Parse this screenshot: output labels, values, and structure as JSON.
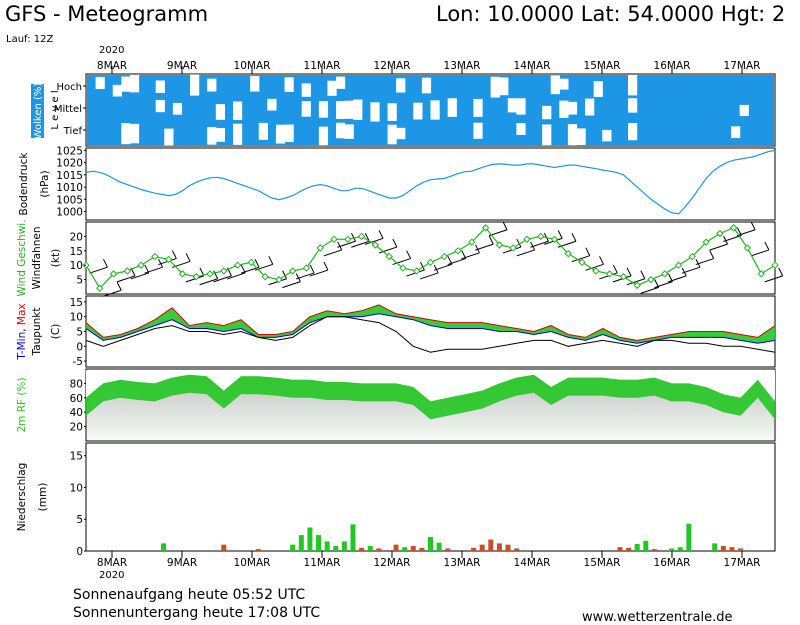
{
  "header": {
    "title": "GFS - Meteogramm",
    "location": "Lon: 10.0000 Lat: 54.0000 Hgt: 2",
    "run": "Lauf: 12Z",
    "year_top": "2020",
    "year_bottom": "2020"
  },
  "footer": {
    "sunrise": "Sonnenaufgang heute 05:52 UTC",
    "sunset": "Sonnenuntergang heute 17:08 UTC",
    "site": "www.wetterzentrale.de"
  },
  "colors": {
    "cloud": "#1e96e6",
    "pressure": "#1e96e6",
    "wind_speed": "#22b422",
    "tmin": "#0000dc",
    "tmax": "#dc0000",
    "dewpoint": "#000000",
    "rh_fill": "#22c822",
    "precip_rain": "#22c822",
    "precip_snow": "#c85028",
    "temp_fill_warm": "#d8d820",
    "temp_fill_green": "#22c822"
  },
  "chart_data": [
    {
      "type": "heatmap",
      "panel": "clouds",
      "ylabel_colored": "Wolken (%)",
      "ylabel": "L e v e l",
      "levels": [
        "Hoch",
        "Mittel",
        "Tief"
      ],
      "categories": [
        "8MAR",
        "9MAR",
        "10MAR",
        "11MAR",
        "12MAR",
        "13MAR",
        "14MAR",
        "15MAR",
        "16MAR",
        "17MAR"
      ],
      "hoch": [
        0.5,
        0.6,
        0.7,
        0.5,
        0.8,
        0.9,
        0.6,
        0.6,
        1.0,
        0.9
      ],
      "mittel": [
        0.6,
        0.5,
        0.4,
        0.6,
        0.7,
        0.7,
        0.5,
        0.5,
        1.0,
        0.8
      ],
      "tief": [
        0.8,
        0.5,
        0.4,
        0.5,
        0.5,
        0.6,
        0.5,
        0.6,
        1.0,
        0.8
      ]
    },
    {
      "type": "line",
      "panel": "pressure",
      "ylabel": "Bodendruck",
      "unit": "(hPa)",
      "yticks": [
        1000,
        1005,
        1010,
        1015,
        1020,
        1025
      ],
      "ylim": [
        996.5,
        1026
      ],
      "x": [
        0,
        0.2,
        0.4,
        0.6,
        0.8,
        1.0,
        1.2,
        1.4,
        1.6,
        1.8,
        2.0,
        2.2,
        2.4,
        2.6,
        2.8,
        3.0,
        3.2,
        3.4,
        3.6,
        3.8,
        4.0,
        4.2,
        4.4,
        4.6,
        4.8,
        5.0,
        5.2,
        5.4,
        5.6,
        5.8,
        6.0,
        6.2,
        6.4,
        6.6,
        6.8,
        7.0,
        7.2,
        7.4,
        7.6,
        7.8,
        8.0,
        8.2,
        8.4,
        8.6,
        8.8,
        9.0,
        9.2,
        9.4,
        9.6,
        9.8,
        10.0,
        10.2,
        10.4,
        10.6,
        10.8,
        11.0,
        11.2,
        11.4,
        11.6,
        11.8,
        12.0,
        12.2,
        12.4,
        12.6,
        12.8,
        13.0,
        13.2,
        13.4,
        13.6,
        13.8,
        14.0,
        14.2,
        14.4,
        14.6,
        14.8,
        15.0,
        15.2,
        15.4,
        15.6,
        15.8,
        16.0,
        16.2,
        16.4,
        16.6,
        16.8,
        17.0,
        17.2,
        17.4,
        17.6,
        17.8,
        18.0,
        18.2,
        18.4,
        18.6,
        18.8,
        19.0,
        19.2,
        19.4,
        19.6,
        19.8,
        20.0
      ],
      "values": [
        1016,
        1016.5,
        1016,
        1015,
        1013.5,
        1012,
        1011,
        1010,
        1009,
        1008.2,
        1007.5,
        1007,
        1006.5,
        1007,
        1008.5,
        1010.5,
        1012,
        1013,
        1013.8,
        1014,
        1013.5,
        1012.5,
        1011.5,
        1010.5,
        1009.5,
        1008.5,
        1007,
        1005.5,
        1004.8,
        1005.5,
        1006.5,
        1008,
        1009.5,
        1010.5,
        1011,
        1010.5,
        1009.5,
        1008.5,
        1008.5,
        1009.5,
        1009.5,
        1008.5,
        1007.5,
        1006.5,
        1005.5,
        1005.5,
        1006.5,
        1008.5,
        1010.5,
        1012,
        1013,
        1013.3,
        1013.5,
        1014.5,
        1015.5,
        1016.3,
        1016.5,
        1017.5,
        1018.5,
        1019.3,
        1019.5,
        1019.3,
        1019,
        1019,
        1019.5,
        1019.5,
        1019,
        1018.5,
        1018,
        1018.5,
        1019,
        1019,
        1018.5,
        1018,
        1017.5,
        1017,
        1016.5,
        1016,
        1015,
        1012.5,
        1010,
        1007.5,
        1005,
        1003,
        1001,
        999.5,
        999,
        1002,
        1005.5,
        1009.5,
        1013.5,
        1016.5,
        1018.5,
        1020,
        1021,
        1021.5,
        1022,
        1022.5,
        1023.5,
        1024.5,
        1025
      ]
    },
    {
      "type": "line",
      "panel": "wind",
      "ylabel_colored": "Wind Geschwi.",
      "ylabel": "Windfahnen",
      "unit": "(kt)",
      "yticks": [
        5,
        10,
        15,
        20
      ],
      "ylim": [
        0,
        25
      ],
      "x": [
        0,
        0.4,
        0.8,
        1.2,
        1.6,
        2.0,
        2.4,
        2.8,
        3.2,
        3.6,
        4.0,
        4.4,
        4.8,
        5.2,
        5.6,
        6.0,
        6.4,
        6.8,
        7.2,
        7.6,
        8.0,
        8.4,
        8.8,
        9.2,
        9.6,
        10.0,
        10.4,
        10.8,
        11.2,
        11.6,
        12.0,
        12.4,
        12.8,
        13.2,
        13.6,
        14.0,
        14.4,
        14.8,
        15.2,
        15.6,
        16.0,
        16.4,
        16.8,
        17.2,
        17.6,
        18.0,
        18.4,
        18.8,
        19.2,
        19.6,
        20.0
      ],
      "values": [
        10,
        2,
        7,
        8,
        10,
        13,
        12,
        7,
        6,
        7,
        8,
        10,
        11,
        6,
        5,
        8,
        9,
        16,
        19,
        19,
        20,
        17,
        13,
        9,
        8,
        11,
        13,
        15,
        18,
        23,
        17,
        16,
        19,
        20,
        19,
        14,
        11,
        8,
        7,
        6,
        3,
        5,
        7,
        10,
        13,
        18,
        21,
        23,
        16,
        7,
        10
      ]
    },
    {
      "type": "line",
      "panel": "temperature",
      "ylabel_parts": [
        "T-Min",
        ", ",
        "Max"
      ],
      "ylabel": "Taupunkt",
      "unit": "(C)",
      "yticks": [
        -5,
        0,
        5,
        10,
        15
      ],
      "ylim": [
        -7,
        17
      ],
      "x": [
        0,
        0.5,
        1.0,
        1.5,
        2.0,
        2.5,
        3.0,
        3.5,
        4.0,
        4.5,
        5.0,
        5.5,
        6.0,
        6.5,
        7.0,
        7.5,
        8.0,
        8.5,
        9.0,
        9.5,
        10.0,
        10.5,
        11.0,
        11.5,
        12.0,
        12.5,
        13.0,
        13.5,
        14.0,
        14.5,
        15.0,
        15.5,
        16.0,
        16.5,
        17.0,
        17.5,
        18.0,
        18.5,
        19.0,
        19.5,
        20.0
      ],
      "series": [
        {
          "name": "T-Max",
          "values": [
            8,
            3,
            4,
            6,
            9,
            13,
            7,
            8,
            7,
            9,
            4,
            4,
            5,
            10,
            12,
            11,
            12,
            14,
            11,
            10,
            9,
            8,
            8,
            8,
            7,
            6,
            5,
            7,
            4,
            3,
            6,
            3,
            2,
            3,
            4,
            5,
            5,
            5,
            4,
            3,
            7
          ]
        },
        {
          "name": "T-Min",
          "values": [
            6,
            2,
            3,
            5,
            7,
            9,
            6,
            6,
            5,
            6,
            3,
            3,
            4,
            8,
            10,
            10,
            10,
            11,
            10,
            9,
            7,
            6,
            6,
            6,
            5,
            5,
            4,
            5,
            3,
            2,
            4,
            2,
            1,
            2,
            3,
            3,
            3,
            3,
            2,
            1,
            2
          ]
        },
        {
          "name": "Taupunkt",
          "values": [
            2,
            0,
            2,
            4,
            6,
            7,
            5,
            5,
            4,
            5,
            3,
            2,
            3,
            7,
            10,
            10,
            9,
            8,
            5,
            0,
            -2,
            -1,
            -1,
            -1,
            0,
            1,
            2,
            2,
            0,
            1,
            2,
            1,
            0,
            2,
            2,
            1,
            1,
            0,
            0,
            -1,
            -2
          ]
        }
      ]
    },
    {
      "type": "area",
      "panel": "humidity",
      "ylabel": "2m RF (%)",
      "yticks": [
        20,
        40,
        60,
        80
      ],
      "ylim": [
        0,
        100
      ],
      "x": [
        0,
        0.5,
        1.0,
        1.5,
        2.0,
        2.5,
        3.0,
        3.5,
        4.0,
        4.5,
        5.0,
        5.5,
        6.0,
        6.5,
        7.0,
        7.5,
        8.0,
        8.5,
        9.0,
        9.5,
        10.0,
        10.5,
        11.0,
        11.5,
        12.0,
        12.5,
        13.0,
        13.5,
        14.0,
        14.5,
        15.0,
        15.5,
        16.0,
        16.5,
        17.0,
        17.5,
        18.0,
        18.5,
        19.0,
        19.5,
        20.0
      ],
      "values": [
        60,
        80,
        85,
        82,
        80,
        88,
        92,
        90,
        70,
        90,
        90,
        88,
        85,
        85,
        82,
        82,
        80,
        80,
        80,
        75,
        55,
        60,
        65,
        70,
        80,
        88,
        92,
        75,
        88,
        88,
        88,
        85,
        85,
        88,
        80,
        80,
        75,
        65,
        60,
        85,
        55
      ]
    },
    {
      "type": "bar",
      "panel": "precipitation",
      "ylabel": "Niederschlag",
      "unit": "(mm)",
      "yticks": [
        0,
        5,
        10,
        15
      ],
      "ylim": [
        0,
        17
      ],
      "categories": [
        "8MAR",
        "9MAR",
        "10MAR",
        "11MAR",
        "12MAR",
        "13MAR",
        "14MAR",
        "15MAR",
        "16MAR",
        "17MAR"
      ],
      "x": [
        2.25,
        4.0,
        5.0,
        6.0,
        6.25,
        6.5,
        6.75,
        7.0,
        7.25,
        7.5,
        7.75,
        8.0,
        8.25,
        8.5,
        9.0,
        9.25,
        9.5,
        9.75,
        10.0,
        10.25,
        10.5,
        11.25,
        11.5,
        11.75,
        12.0,
        12.25,
        12.5,
        15.5,
        15.75,
        16.0,
        16.25,
        16.5,
        17.0,
        17.25,
        17.5,
        18.25,
        18.5,
        18.75,
        19.0
      ],
      "values": [
        1.2,
        1.0,
        0.3,
        1.0,
        2.5,
        3.7,
        2.5,
        1.5,
        0.8,
        1.5,
        4.2,
        0.5,
        0.8,
        0.4,
        1.0,
        0.6,
        0.8,
        0.5,
        2.2,
        1.3,
        0.4,
        0.5,
        1.0,
        1.8,
        1.2,
        1.0,
        0.4,
        0.6,
        0.5,
        1.1,
        1.6,
        0.3,
        0.4,
        0.6,
        4.3,
        1.2,
        0.8,
        0.6,
        0.4
      ],
      "kinds": [
        "r",
        "s",
        "s",
        "r",
        "r",
        "r",
        "r",
        "r",
        "r",
        "r",
        "r",
        "s",
        "r",
        "s",
        "s",
        "r",
        "s",
        "s",
        "r",
        "r",
        "s",
        "s",
        "s",
        "s",
        "s",
        "s",
        "s",
        "s",
        "s",
        "r",
        "r",
        "s",
        "r",
        "r",
        "r",
        "r",
        "s",
        "s",
        "s"
      ]
    }
  ]
}
